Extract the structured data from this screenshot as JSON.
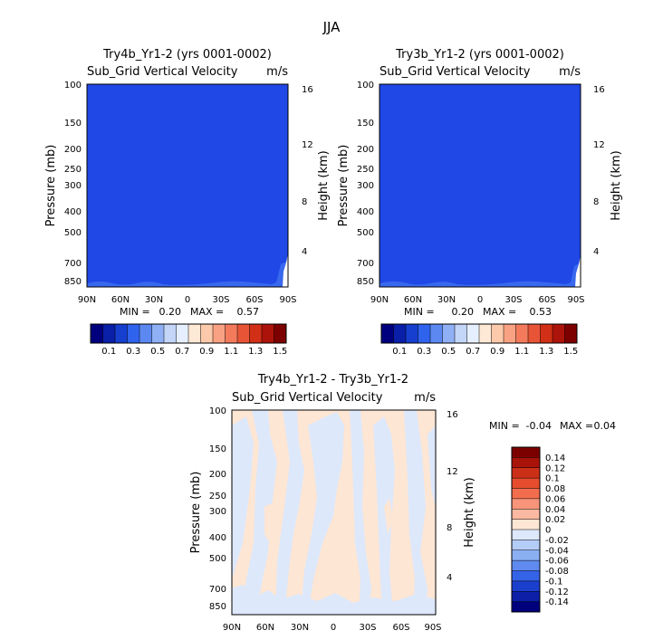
{
  "figure_title": "JJA",
  "chart_data": [
    {
      "type": "heatmap",
      "title": "Try4b_Yr1-2 (yrs 0001-0002)",
      "variable": "Sub_Grid Vertical Velocity",
      "units": "m/s",
      "xlabel": "",
      "ylabel": "Pressure (mb)",
      "ylabel_right": "Height (km)",
      "x_ticks": [
        "90N",
        "60N",
        "30N",
        "0",
        "30S",
        "60S",
        "90S"
      ],
      "y_ticks": [
        100,
        150,
        200,
        250,
        300,
        400,
        500,
        700,
        850
      ],
      "y_right_ticks": [
        16,
        12,
        8,
        4
      ],
      "min_label": "MIN =",
      "min_value": "0.20",
      "max_label": "MAX =",
      "max_value": "0.57",
      "colorbar_labels": [
        "0.1",
        "0.3",
        "0.5",
        "0.7",
        "0.9",
        "1.1",
        "1.3",
        "1.5"
      ],
      "colorbar_colors": [
        "#00007e",
        "#0a1fa8",
        "#163fcf",
        "#2f63ee",
        "#5c88f2",
        "#8fb0f5",
        "#c3d6f8",
        "#e6efff",
        "#fde9d5",
        "#fcc9aa",
        "#f9a283",
        "#f37b5c",
        "#e85536",
        "#d12f16",
        "#ac130a",
        "#7d0000"
      ]
    },
    {
      "type": "heatmap",
      "title": "Try3b_Yr1-2 (yrs 0001-0002)",
      "variable": "Sub_Grid Vertical Velocity",
      "units": "m/s",
      "xlabel": "",
      "ylabel": "Pressure (mb)",
      "ylabel_right": "Height (km)",
      "x_ticks": [
        "90N",
        "60N",
        "30N",
        "0",
        "30S",
        "60S",
        "90S"
      ],
      "y_ticks": [
        100,
        150,
        200,
        250,
        300,
        400,
        500,
        700,
        850
      ],
      "y_right_ticks": [
        16,
        12,
        8,
        4
      ],
      "min_label": "MIN =",
      "min_value": "0.20",
      "max_label": "MAX =",
      "max_value": "0.53",
      "colorbar_labels": [
        "0.1",
        "0.3",
        "0.5",
        "0.7",
        "0.9",
        "1.1",
        "1.3",
        "1.5"
      ],
      "colorbar_colors": [
        "#00007e",
        "#0a1fa8",
        "#163fcf",
        "#2f63ee",
        "#5c88f2",
        "#8fb0f5",
        "#c3d6f8",
        "#e6efff",
        "#fde9d5",
        "#fcc9aa",
        "#f9a283",
        "#f37b5c",
        "#e85536",
        "#d12f16",
        "#ac130a",
        "#7d0000"
      ]
    },
    {
      "type": "heatmap",
      "title": "Try4b_Yr1-2 - Try3b_Yr1-2",
      "variable": "Sub_Grid Vertical Velocity",
      "units": "m/s",
      "xlabel": "",
      "ylabel": "Pressure (mb)",
      "ylabel_right": "Height (km)",
      "x_ticks": [
        "90N",
        "60N",
        "30N",
        "0",
        "30S",
        "60S",
        "90S"
      ],
      "y_ticks": [
        100,
        150,
        200,
        250,
        300,
        400,
        500,
        700,
        850
      ],
      "y_right_ticks": [
        16,
        12,
        8,
        4
      ],
      "min_label": "MIN =",
      "min_value": "-0.04",
      "max_label": "MAX =",
      "max_value": "0.04",
      "colorbar_labels": [
        "0.14",
        "0.12",
        "0.1",
        "0.08",
        "0.06",
        "0.04",
        "0.02",
        "0",
        "-0.02",
        "-0.04",
        "-0.06",
        "-0.08",
        "-0.1",
        "-0.12",
        "-0.14"
      ],
      "colorbar_colors": [
        "#7d0000",
        "#a8130a",
        "#cc2f18",
        "#e54d2e",
        "#f26d4e",
        "#f79479",
        "#fab9a0",
        "#fde6d4",
        "#dde8fb",
        "#b4cdf7",
        "#8aaff3",
        "#5f8bf0",
        "#3563e8",
        "#1b3fcd",
        "#0c1fa6",
        "#00007e"
      ]
    }
  ]
}
